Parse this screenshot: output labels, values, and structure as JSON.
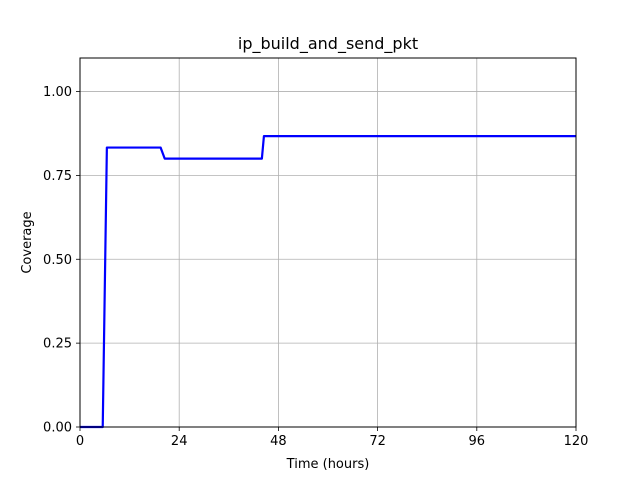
{
  "chart_data": {
    "type": "line",
    "title": "ip_build_and_send_pkt",
    "xlabel": "Time (hours)",
    "ylabel": "Coverage",
    "xlim": [
      0,
      120
    ],
    "ylim": [
      0,
      1.1
    ],
    "x_ticks": [
      0,
      24,
      48,
      72,
      96,
      120
    ],
    "x_tick_labels": [
      "0",
      "24",
      "48",
      "72",
      "96",
      "120"
    ],
    "y_ticks": [
      0,
      0.25,
      0.5,
      0.75,
      1.0
    ],
    "y_tick_labels": [
      "0.00",
      "0.25",
      "0.50",
      "0.75",
      "1.00"
    ],
    "grid": true,
    "series": [
      {
        "color": "#0000ff",
        "x": [
          0,
          5.5,
          6.5,
          19.5,
          20.5,
          44.0,
          44.5,
          120
        ],
        "y": [
          0,
          0,
          0.833,
          0.833,
          0.8,
          0.8,
          0.867,
          0.867
        ]
      }
    ]
  }
}
